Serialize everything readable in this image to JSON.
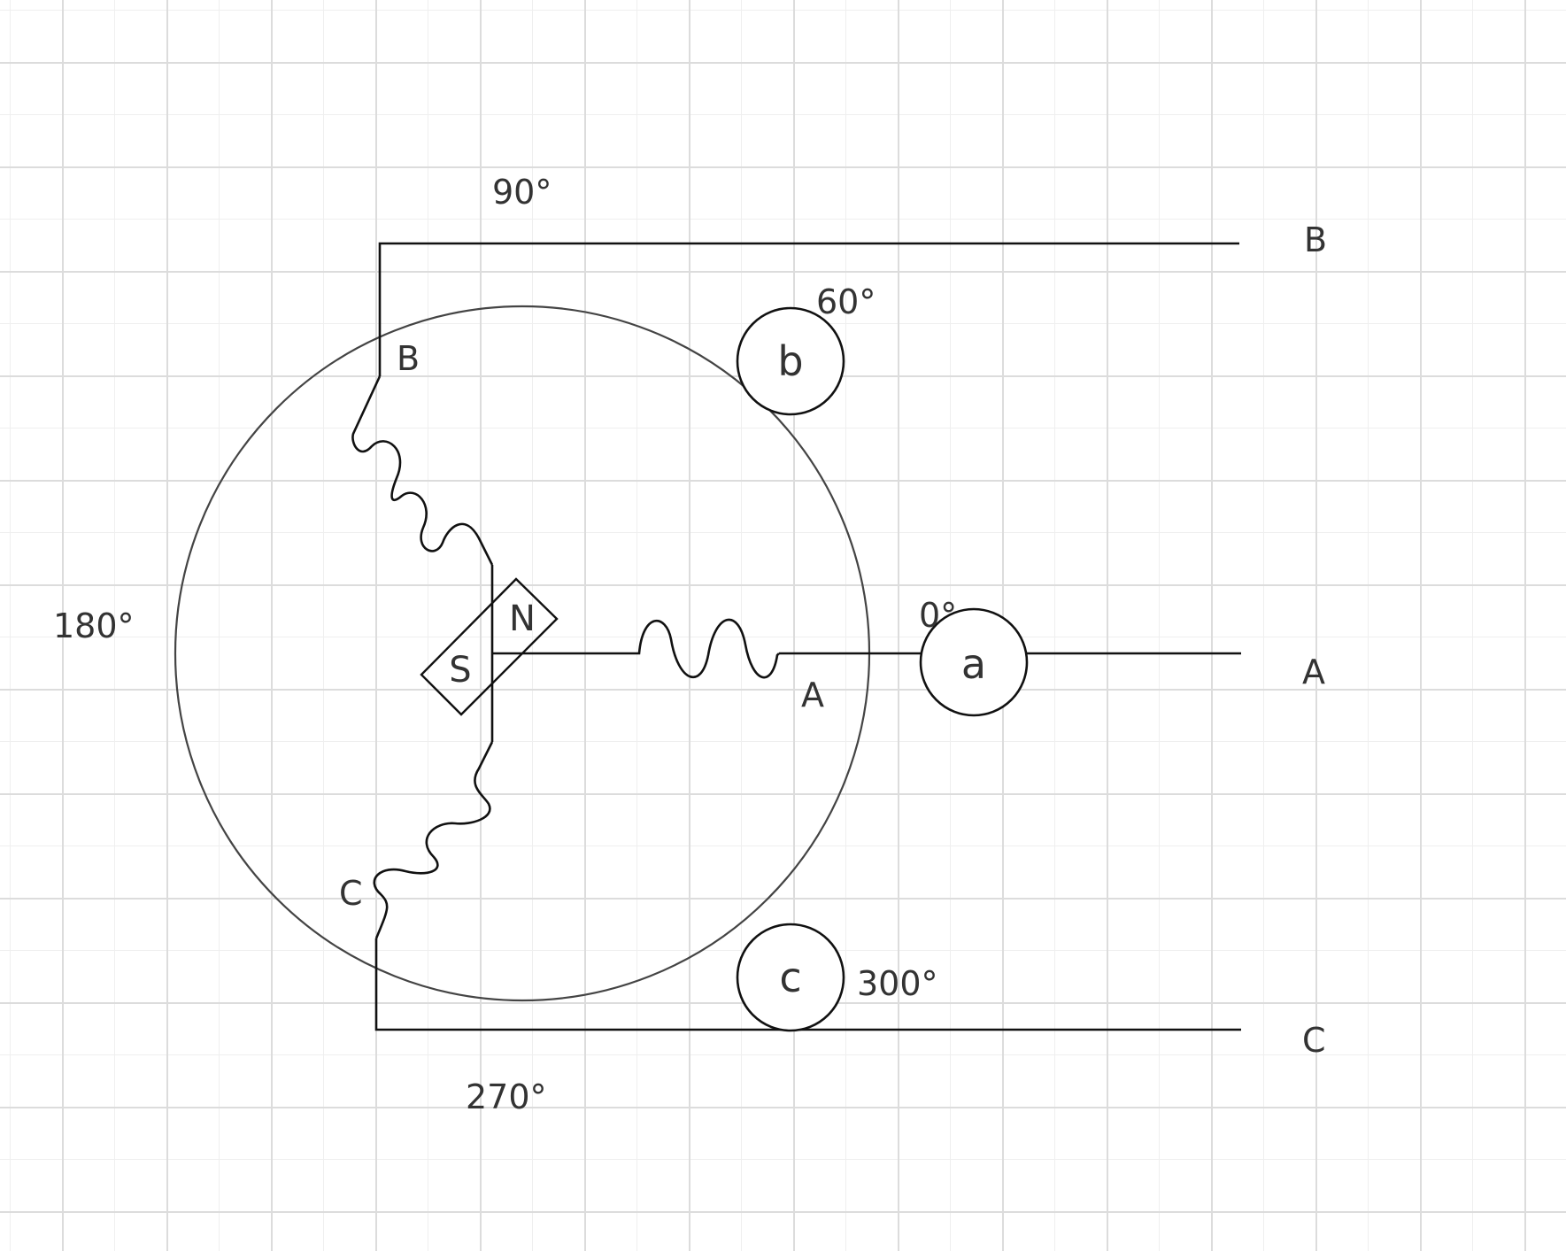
{
  "angles": {
    "deg_90": "90°",
    "deg_60": "60°",
    "deg_180": "180°",
    "deg_0": "0°",
    "deg_300": "300°",
    "deg_270": "270°"
  },
  "phase_terminals": {
    "outer_b": "B",
    "outer_a": "A",
    "outer_c": "C",
    "inner_b": "B",
    "inner_a": "A",
    "inner_c": "C"
  },
  "hall_sensors": {
    "a": "a",
    "b": "b",
    "c": "c"
  },
  "rotor": {
    "north": "N",
    "south": "S"
  }
}
